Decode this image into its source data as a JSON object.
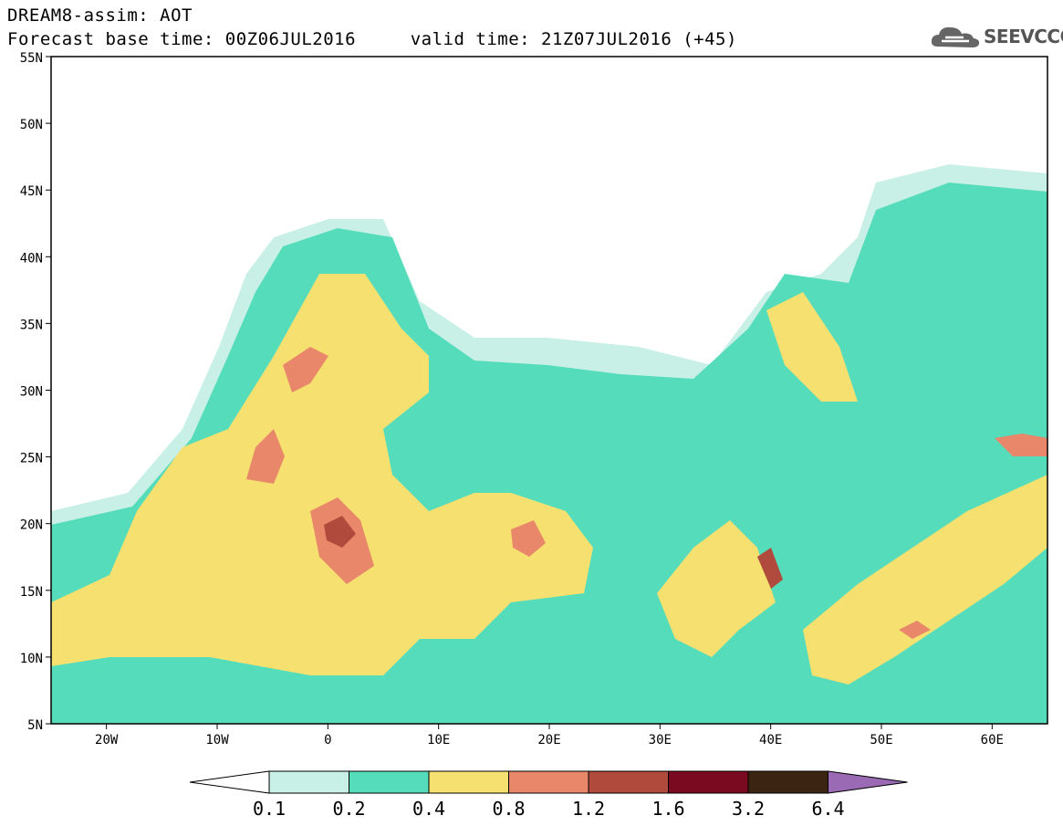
{
  "header": {
    "title": "DREAM8-assim: AOT",
    "subtitle": "Forecast base time: 00Z06JUL2016     valid time: 21Z07JUL2016 (+45)",
    "logo_text": "SEEVCCC",
    "logo_icon": "cloud-icon"
  },
  "map": {
    "lon_range": [
      -25,
      65
    ],
    "lat_range": [
      5,
      55
    ],
    "lat_ticks": [
      "5N",
      "10N",
      "15N",
      "20N",
      "25N",
      "30N",
      "35N",
      "40N",
      "45N",
      "50N",
      "55N"
    ],
    "lon_ticks": [
      "20W",
      "10W",
      "0",
      "10E",
      "20E",
      "30E",
      "40E",
      "50E",
      "60E"
    ]
  },
  "legend": {
    "labels": [
      "0.1",
      "0.2",
      "0.4",
      "0.8",
      "1.2",
      "1.6",
      "3.2",
      "6.4"
    ],
    "colors": [
      "#ffffff",
      "#c8f0e6",
      "#55dcbb",
      "#f5e070",
      "#e8876a",
      "#b04a3c",
      "#7a0a20",
      "#3b2412",
      "#9a6ab4"
    ]
  }
}
